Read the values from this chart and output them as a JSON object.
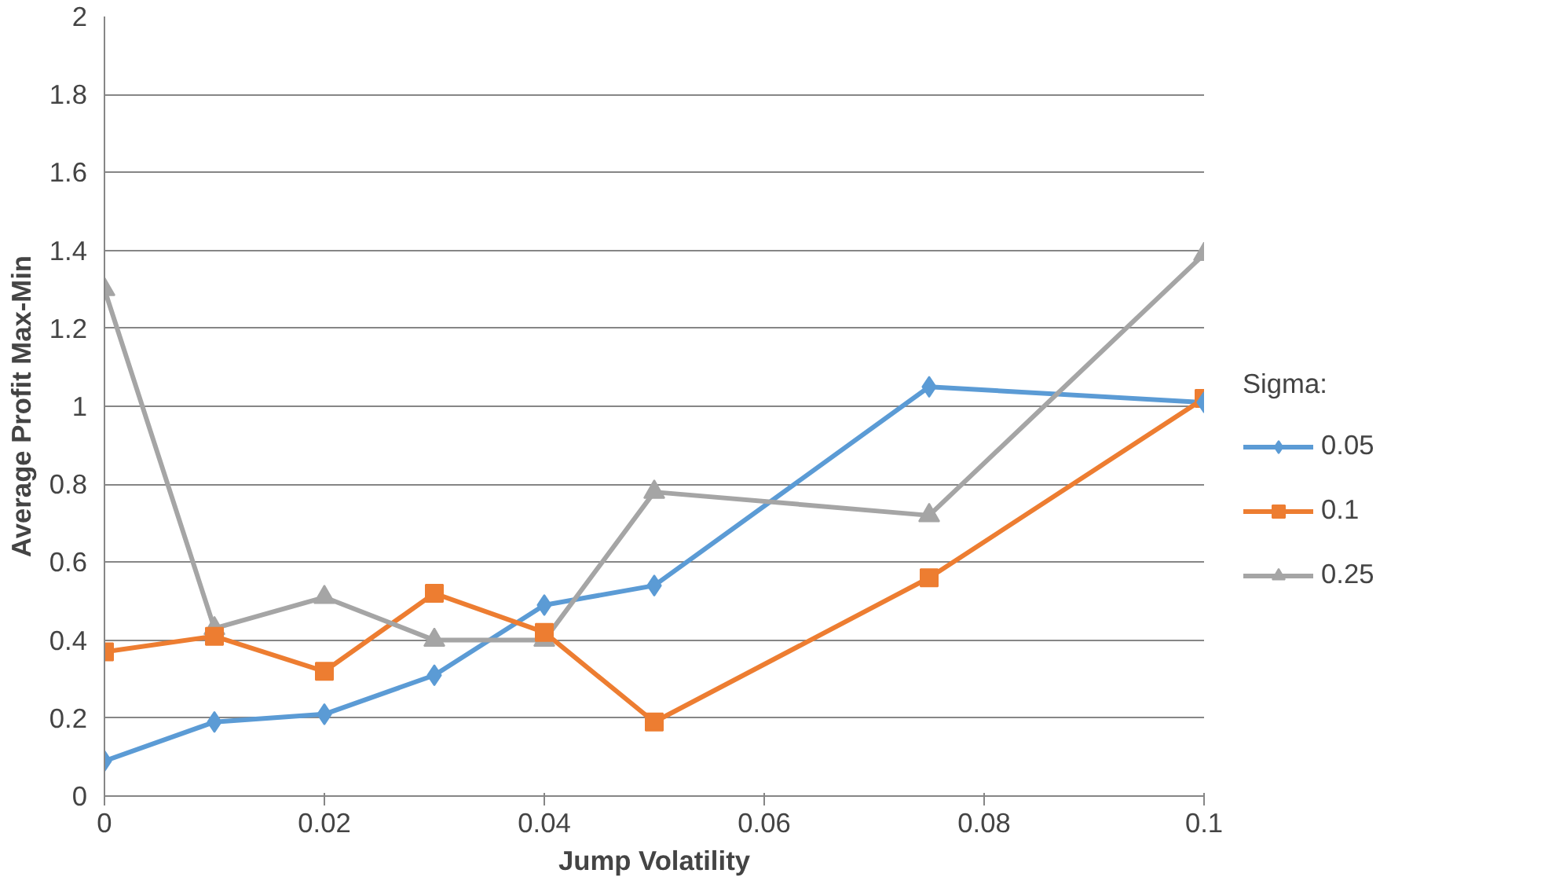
{
  "chart_data": {
    "type": "line",
    "xlabel": "Jump Volatility",
    "ylabel": "Average Profit Max-Min",
    "legend_title": "Sigma:",
    "legend": "right",
    "grid": "y",
    "x": [
      0,
      0.01,
      0.02,
      0.03,
      0.04,
      0.05,
      0.075,
      0.1
    ],
    "xlim": [
      0,
      0.1
    ],
    "xticks": [
      0,
      0.02,
      0.04,
      0.06,
      0.08,
      0.1
    ],
    "ylim": [
      0,
      2
    ],
    "yticks": [
      0,
      0.2,
      0.4,
      0.6,
      0.8,
      1,
      1.2,
      1.4,
      1.6,
      1.8,
      2
    ],
    "series": [
      {
        "name": "0.05",
        "color": "#5b9bd5",
        "marker": "diamond",
        "values": [
          0.09,
          0.19,
          0.21,
          0.31,
          0.49,
          0.54,
          1.05,
          1.01
        ]
      },
      {
        "name": "0.1",
        "color": "#ed7d31",
        "marker": "square",
        "values": [
          0.37,
          0.41,
          0.32,
          0.52,
          0.42,
          0.19,
          0.56,
          1.02
        ]
      },
      {
        "name": "0.25",
        "color": "#a5a5a5",
        "marker": "triangle",
        "values": [
          1.3,
          0.43,
          0.51,
          0.4,
          0.4,
          0.78,
          0.72,
          1.39
        ]
      }
    ]
  }
}
